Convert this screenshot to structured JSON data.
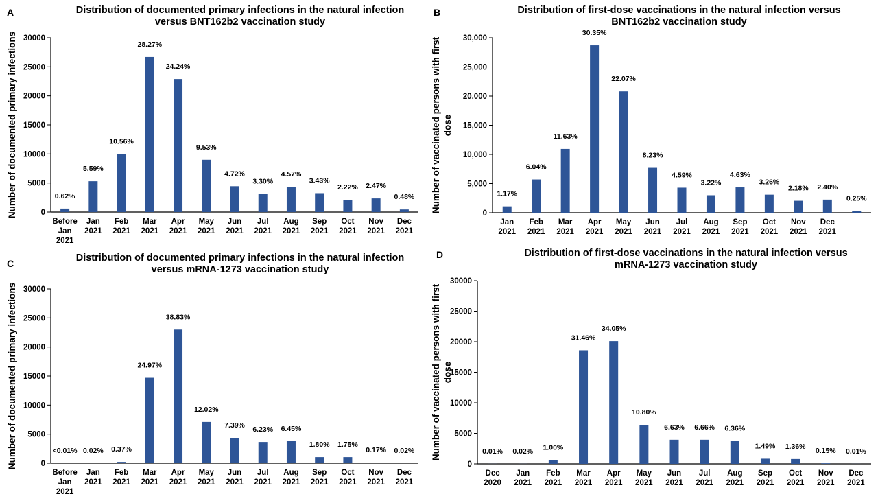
{
  "style": {
    "bar_color": "#2E5597",
    "axis_color": "#000000",
    "text_color": "#000000"
  },
  "chart_data": [
    {
      "panel": "A",
      "type": "bar",
      "title": [
        "Distribution of documented primary infections in the natural infection",
        "versus BNT162b2 vaccination study"
      ],
      "ylabel": "Number of documented primary infections",
      "xlabel": "",
      "ylim": [
        0,
        30000
      ],
      "yticks": [
        "0",
        "5000",
        "10000",
        "15000",
        "20000",
        "25000",
        "30000"
      ],
      "grid": false,
      "categories": [
        [
          "Before",
          "Jan",
          "2021"
        ],
        [
          "Jan",
          "2021"
        ],
        [
          "Feb",
          "2021"
        ],
        [
          "Mar",
          "2021"
        ],
        [
          "Apr",
          "2021"
        ],
        [
          "May",
          "2021"
        ],
        [
          "Jun",
          "2021"
        ],
        [
          "Jul",
          "2021"
        ],
        [
          "Aug",
          "2021"
        ],
        [
          "Sep",
          "2021"
        ],
        [
          "Oct",
          "2021"
        ],
        [
          "Nov",
          "2021"
        ],
        [
          "Dec",
          "2021"
        ]
      ],
      "values": [
        600,
        5300,
        10000,
        26700,
        22900,
        9000,
        4450,
        3150,
        4350,
        3250,
        2100,
        2350,
        450
      ],
      "labels": [
        "0.62%",
        "5.59%",
        "10.56%",
        "28.27%",
        "24.24%",
        "9.53%",
        "4.72%",
        "3.30%",
        "4.57%",
        "3.43%",
        "2.22%",
        "2.47%",
        "0.48%"
      ]
    },
    {
      "panel": "B",
      "type": "bar",
      "title": [
        "Distribution of first-dose vaccinations in the natural infection versus",
        "BNT162b2 vaccination study"
      ],
      "ylabel": [
        "Number of vaccinated persons with first",
        "dose"
      ],
      "xlabel": "",
      "ylim": [
        0,
        30000
      ],
      "yticks": [
        "0",
        "5,000",
        "10,000",
        "15,000",
        "20,000",
        "25,000",
        "30,000"
      ],
      "grid": false,
      "categories": [
        [
          "Jan",
          "2021"
        ],
        [
          "Feb",
          "2021"
        ],
        [
          "Mar",
          "2021"
        ],
        [
          "Apr",
          "2021"
        ],
        [
          "May",
          "2021"
        ],
        [
          "Jun",
          "2021"
        ],
        [
          "Jul",
          "2021"
        ],
        [
          "Aug",
          "2021"
        ],
        [
          "Sep",
          "2021"
        ],
        [
          "Oct",
          "2021"
        ],
        [
          "Nov",
          "2021"
        ],
        [
          "Dec",
          "2021"
        ],
        []
      ],
      "values": [
        1100,
        5700,
        10950,
        28700,
        20800,
        7700,
        4300,
        3000,
        4350,
        3100,
        2050,
        2250,
        300
      ],
      "labels": [
        "1.17%",
        "6.04%",
        "11.63%",
        "30.35%",
        "22.07%",
        "8.23%",
        "4.59%",
        "3.22%",
        "4.63%",
        "3.26%",
        "2.18%",
        "2.40%",
        "0.25%"
      ]
    },
    {
      "panel": "C",
      "type": "bar",
      "title": [
        "Distribution of documented primary infections in the natural infection",
        "versus mRNA-1273 vaccination study"
      ],
      "ylabel": "Number of documented primary infections",
      "xlabel": "",
      "ylim": [
        0,
        30000
      ],
      "yticks": [
        "0",
        "5000",
        "10000",
        "15000",
        "20000",
        "25000",
        "30000"
      ],
      "grid": false,
      "categories": [
        [
          "Before",
          "Jan",
          "2021"
        ],
        [
          "Jan",
          "2021"
        ],
        [
          "Feb",
          "2021"
        ],
        [
          "Mar",
          "2021"
        ],
        [
          "Apr",
          "2021"
        ],
        [
          "May",
          "2021"
        ],
        [
          "Jun",
          "2021"
        ],
        [
          "Jul",
          "2021"
        ],
        [
          "Aug",
          "2021"
        ],
        [
          "Sep",
          "2021"
        ],
        [
          "Oct",
          "2021"
        ],
        [
          "Nov",
          "2021"
        ],
        [
          "Dec",
          "2021"
        ]
      ],
      "values": [
        0,
        10,
        220,
        14700,
        23000,
        7100,
        4350,
        3650,
        3800,
        1050,
        1050,
        100,
        10
      ],
      "labels": [
        "<0.01%",
        "0.02%",
        "0.37%",
        "24.97%",
        "38.83%",
        "12.02%",
        "7.39%",
        "6.23%",
        "6.45%",
        "1.80%",
        "1.75%",
        "0.17%",
        "0.02%"
      ]
    },
    {
      "panel": "D",
      "type": "bar",
      "title": [
        "Distribution of first-dose vaccinations in the natural infection versus",
        "mRNA-1273 vaccination study"
      ],
      "ylabel": [
        "Number of vaccinated persons with first",
        "dose"
      ],
      "xlabel": "",
      "ylim": [
        0,
        30000
      ],
      "yticks": [
        "0",
        "5000",
        "10000",
        "15000",
        "20000",
        "25000",
        "30000"
      ],
      "grid": false,
      "categories": [
        [
          "Dec",
          "2020"
        ],
        [
          "Jan",
          "2021"
        ],
        [
          "Feb",
          "2021"
        ],
        [
          "Mar",
          "2021"
        ],
        [
          "Apr",
          "2021"
        ],
        [
          "May",
          "2021"
        ],
        [
          "Jun",
          "2021"
        ],
        [
          "Jul",
          "2021"
        ],
        [
          "Aug",
          "2021"
        ],
        [
          "Sep",
          "2021"
        ],
        [
          "Oct",
          "2021"
        ],
        [
          "Nov",
          "2021"
        ],
        [
          "Dec",
          "2021"
        ]
      ],
      "values": [
        10,
        10,
        600,
        18600,
        20100,
        6400,
        3950,
        3950,
        3750,
        850,
        800,
        90,
        10
      ],
      "labels": [
        "0.01%",
        "0.02%",
        "1.00%",
        "31.46%",
        "34.05%",
        "10.80%",
        "6.63%",
        "6.66%",
        "6.36%",
        "1.49%",
        "1.36%",
        "0.15%",
        "0.01%"
      ]
    }
  ]
}
